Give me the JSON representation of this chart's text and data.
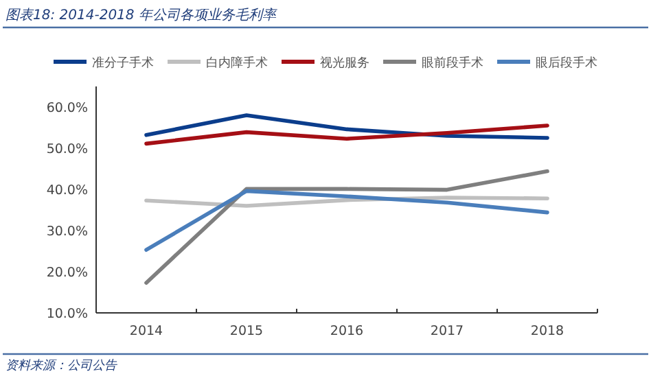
{
  "chart_data": {
    "type": "line",
    "title": "图表18:  2014-2018 年公司各项业务毛利率",
    "categories": [
      "2014",
      "2015",
      "2016",
      "2017",
      "2018"
    ],
    "series": [
      {
        "name": "准分子手术",
        "color": "#0b3d8c",
        "values": [
          53.2,
          58.0,
          54.6,
          53.0,
          52.5
        ]
      },
      {
        "name": "白内障手术",
        "color": "#bfbfbf",
        "values": [
          37.3,
          36.0,
          37.4,
          38.0,
          37.8
        ]
      },
      {
        "name": "视光服务",
        "color": "#a50f15",
        "values": [
          51.1,
          53.9,
          52.3,
          53.7,
          55.5
        ]
      },
      {
        "name": "眼前段手术",
        "color": "#7f7f7f",
        "values": [
          17.3,
          40.1,
          40.1,
          39.9,
          44.4
        ]
      },
      {
        "name": "眼后段手术",
        "color": "#4a7ebb",
        "values": [
          25.3,
          39.6,
          38.3,
          36.8,
          34.4
        ]
      }
    ],
    "ylim": [
      10,
      65
    ],
    "yticks": [
      {
        "value": 10,
        "label": "10.0%"
      },
      {
        "value": 20,
        "label": "20.0%"
      },
      {
        "value": 30,
        "label": "30.0%"
      },
      {
        "value": 40,
        "label": "40.0%"
      },
      {
        "value": 50,
        "label": "50.0%"
      },
      {
        "value": 60,
        "label": "60.0%"
      }
    ],
    "legend": "top",
    "marker": "none",
    "line_style": "solid",
    "grid": false,
    "annotations": [
      "资料来源：公司公告"
    ]
  }
}
